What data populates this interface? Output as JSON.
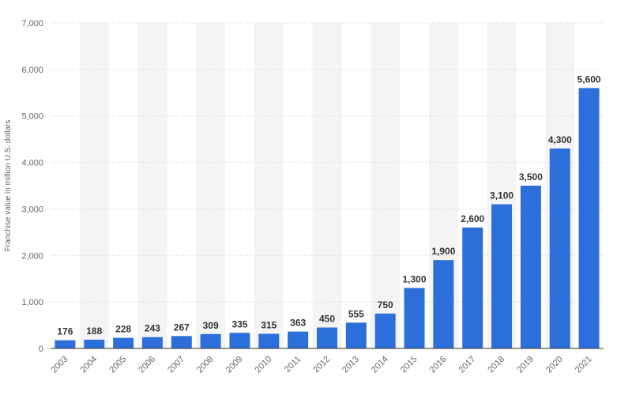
{
  "chart_data": {
    "type": "bar",
    "categories": [
      "2003",
      "2004",
      "2005",
      "2006",
      "2007",
      "2008",
      "2009",
      "2010",
      "2011",
      "2012",
      "2013",
      "2014",
      "2015",
      "2016",
      "2017",
      "2018",
      "2019",
      "2020",
      "2021"
    ],
    "values": [
      176,
      188,
      228,
      243,
      267,
      309,
      335,
      315,
      363,
      450,
      555,
      750,
      1300,
      1900,
      2600,
      3100,
      3500,
      4300,
      5600
    ],
    "data_labels": [
      "176",
      "188",
      "228",
      "243",
      "267",
      "309",
      "335",
      "315",
      "363",
      "450",
      "555",
      "750",
      "1,300",
      "1,900",
      "2,600",
      "3,100",
      "3,500",
      "4,300",
      "5,600"
    ],
    "yticks": [
      0,
      1000,
      2000,
      3000,
      4000,
      5000,
      6000,
      7000
    ],
    "ytick_labels": [
      "0",
      "1,000",
      "2,000",
      "3,000",
      "4,000",
      "5,000",
      "6,000",
      "7,000"
    ],
    "ylim": [
      0,
      7000
    ],
    "ylabel": "Franchise value in million U.S. dollars",
    "xlabel": "",
    "title": "",
    "grid": true,
    "bar_color": "#2c6fda",
    "band_color": "#f4f4f4"
  }
}
